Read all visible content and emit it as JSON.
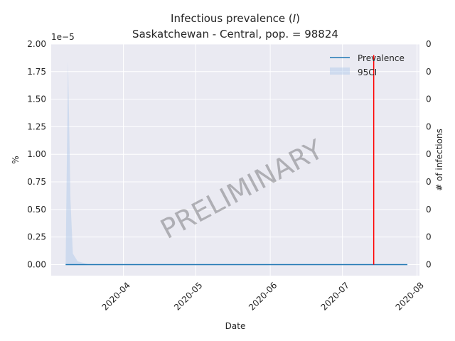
{
  "chart_data": {
    "type": "line",
    "title_line1": "Infectious prevalence (",
    "title_italic": "I",
    "title_line1_end": ")",
    "title_line2": "Saskatchewan - Central, pop. = 98824",
    "xlabel": "Date",
    "ylabel": "%",
    "ylabel_right": "# of infections",
    "y_offset_label": "1e−5",
    "ylim": [
      -1e-06,
      2e-05
    ],
    "y_ticks": [
      0.0,
      2.5e-06,
      5e-06,
      7.5e-06,
      1e-05,
      1.25e-05,
      1.5e-05,
      1.75e-05,
      2e-05
    ],
    "y_tick_labels": [
      "0.00",
      "0.25",
      "0.50",
      "0.75",
      "1.00",
      "1.25",
      "1.50",
      "1.75",
      "2.00"
    ],
    "right_tick_labels": [
      "0",
      "0",
      "0",
      "0",
      "0",
      "0",
      "0",
      "0",
      "0"
    ],
    "x_range": [
      "2020-03-02",
      "2020-08-02"
    ],
    "x_ticks": [
      "2020-04-01",
      "2020-05-01",
      "2020-06-01",
      "2020-07-01",
      "2020-08-01"
    ],
    "x_tick_labels": [
      "2020-04",
      "2020-05",
      "2020-06",
      "2020-07",
      "2020-08"
    ],
    "series": [
      {
        "name": "Prevalence",
        "color": "#1f77b4",
        "x": [
          "2020-03-08",
          "2020-07-28"
        ],
        "y": [
          0.0,
          0.0
        ]
      }
    ],
    "band": {
      "name": "95CI",
      "color": "#aec7e8",
      "x": [
        "2020-03-08",
        "2020-03-09",
        "2020-03-10",
        "2020-03-11",
        "2020-03-13",
        "2020-03-18",
        "2020-07-28"
      ],
      "upper": [
        0.0,
        1.85e-05,
        6e-06,
        1e-06,
        3e-07,
        0.0,
        0.0
      ],
      "lower": [
        0.0,
        0.0,
        0.0,
        0.0,
        0.0,
        0.0,
        0.0
      ]
    },
    "vline": {
      "x": "2020-07-14",
      "color": "#ff0000"
    },
    "legend_position": "top-right",
    "watermark": "PRELIMINARY",
    "grid": true
  }
}
